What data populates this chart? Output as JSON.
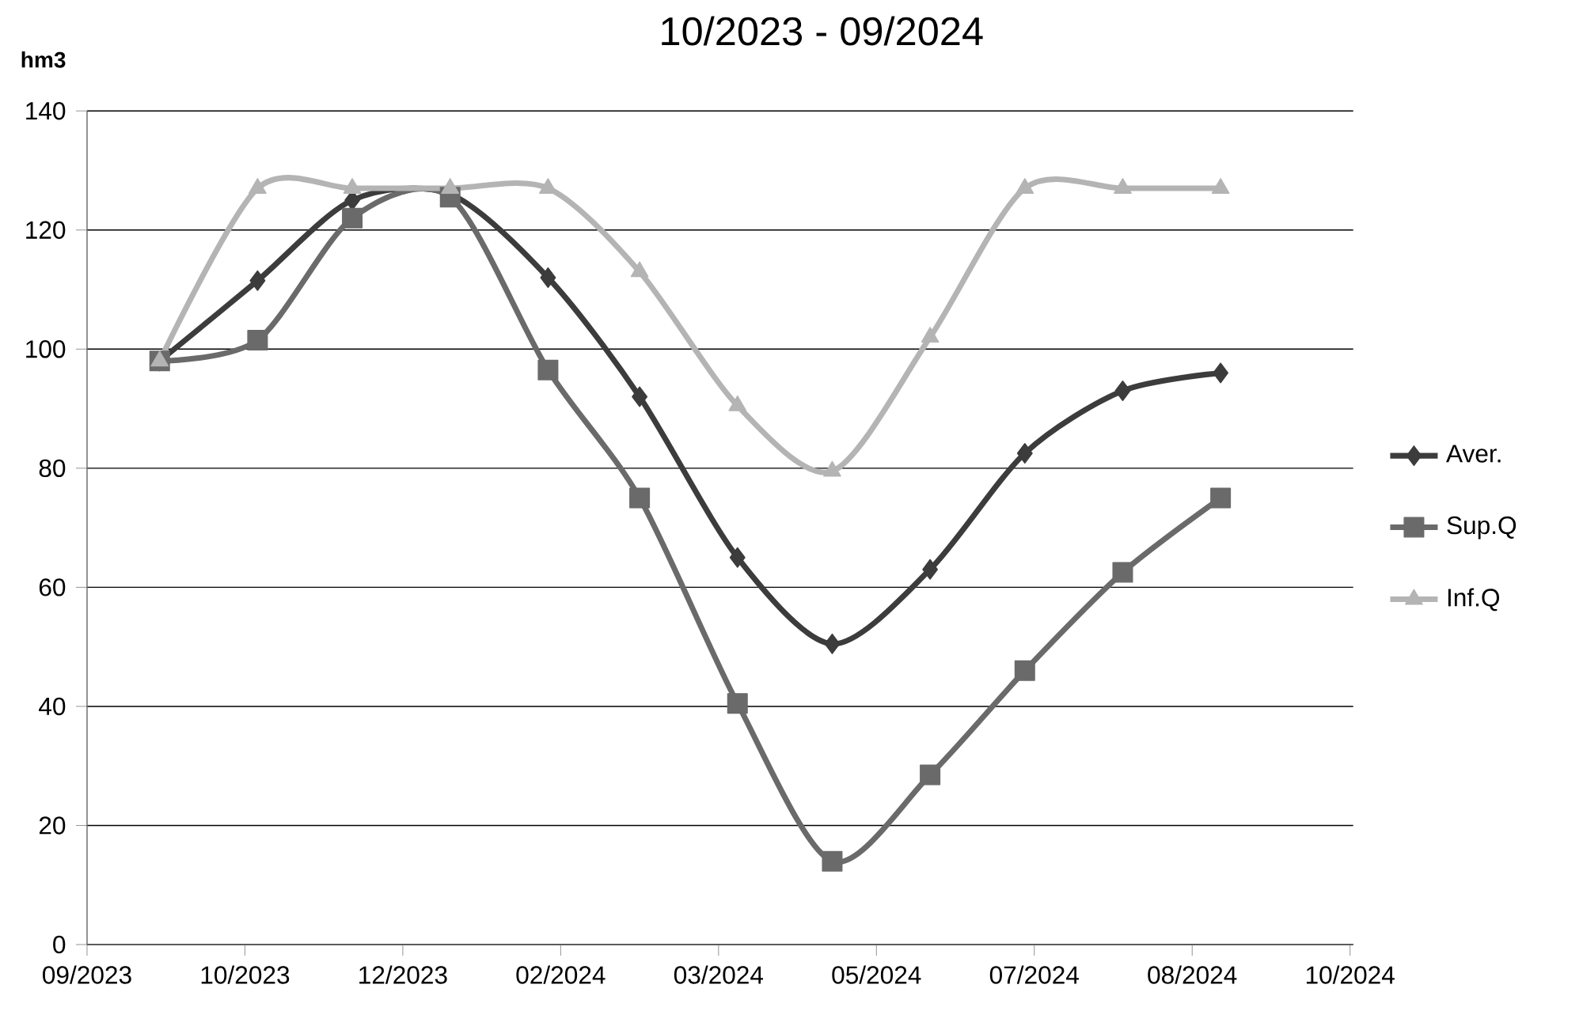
{
  "chart_data": {
    "type": "line",
    "title": "10/2023 - 09/2024",
    "ylabel": "hm3",
    "x": [
      "2023-10-01",
      "2023-11-01",
      "2023-12-01",
      "2024-01-01",
      "2024-02-01",
      "2024-03-01",
      "2024-04-01",
      "2024-05-01",
      "2024-06-01",
      "2024-07-01",
      "2024-08-01",
      "2024-09-01"
    ],
    "series": [
      {
        "name": "Aver.",
        "color": "#3c3c3c",
        "marker": "diamond",
        "values": [
          98,
          111.5,
          125,
          126,
          112,
          92,
          65,
          50.5,
          63,
          82.5,
          93,
          96
        ]
      },
      {
        "name": "Sup.Q",
        "color": "#6a6a6a",
        "marker": "square",
        "values": [
          98,
          101.5,
          122,
          125.5,
          96.5,
          75,
          40.5,
          14,
          28.5,
          46,
          62.5,
          75
        ]
      },
      {
        "name": "Inf.Q",
        "color": "#b4b4b4",
        "marker": "triangle",
        "values": [
          98,
          127,
          127,
          127,
          127,
          113,
          90.5,
          79.5,
          102,
          127,
          127,
          127
        ]
      }
    ],
    "xlim": [
      "2023-09-08",
      "2024-10-13"
    ],
    "xticks": [
      {
        "value": "2023-09-08",
        "label": "09/2023"
      },
      {
        "value": "2023-10-28",
        "label": "10/2023"
      },
      {
        "value": "2023-12-17",
        "label": "12/2023"
      },
      {
        "value": "2024-02-05",
        "label": "02/2024"
      },
      {
        "value": "2024-03-26",
        "label": "03/2024"
      },
      {
        "value": "2024-05-15",
        "label": "05/2024"
      },
      {
        "value": "2024-07-04",
        "label": "07/2024"
      },
      {
        "value": "2024-08-23",
        "label": "08/2024"
      },
      {
        "value": "2024-10-12",
        "label": "10/2024"
      }
    ],
    "ylim": [
      0,
      140
    ],
    "yticks": [
      0,
      20,
      40,
      60,
      80,
      100,
      120,
      140
    ],
    "grid": "y",
    "legend": "right",
    "line_style": "solid"
  }
}
